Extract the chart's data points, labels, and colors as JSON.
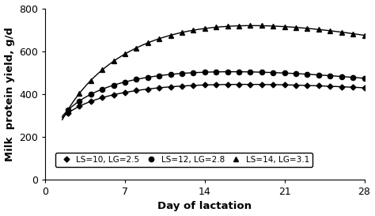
{
  "title": "",
  "xlabel": "Day of lactation",
  "ylabel": "Milk  protein yield, g/d",
  "xlim": [
    0,
    28
  ],
  "ylim": [
    0,
    800
  ],
  "xticks": [
    0,
    7,
    14,
    21,
    28
  ],
  "yticks": [
    0,
    200,
    400,
    600,
    800
  ],
  "series": [
    {
      "label": "LS=10, LG=2.5",
      "marker": "D",
      "a": 245.0,
      "b": 0.3,
      "c": 0.018
    },
    {
      "label": "LS=12, LG=2.8",
      "marker": "o",
      "a": 285.0,
      "b": 0.3,
      "c": 0.018
    },
    {
      "label": "LS=14, LG=3.1",
      "marker": "^",
      "a": 360.0,
      "b": 0.3,
      "c": 0.018
    }
  ],
  "line_color": "#000000",
  "background_color": "#ffffff",
  "legend_fontsize": 7.5,
  "axis_fontsize": 9.5,
  "tick_fontsize": 9
}
